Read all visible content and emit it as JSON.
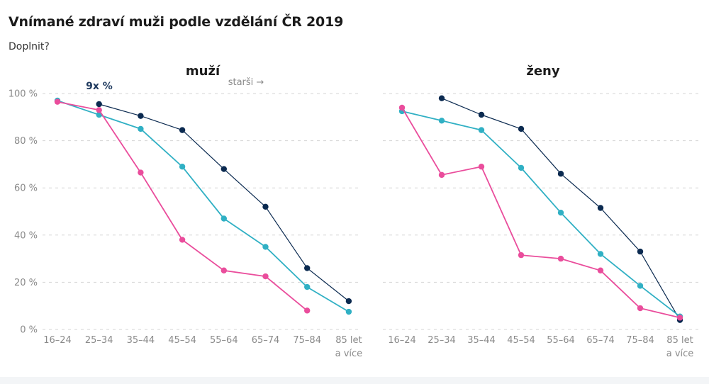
{
  "title": "Vnímané zdraví muži podle vzdělání ČR 2019",
  "subtitle": "Doplnit?",
  "colors": {
    "series_1": "#0b2a50",
    "series_2": "#30b0c4",
    "series_3": "#ea4d9c",
    "grid": "#d4d4d4",
    "tick": "#8a8a8a"
  },
  "chart_data": [
    {
      "type": "line",
      "facet": "left",
      "title": "muží",
      "annotations": [
        {
          "text": "9x %",
          "style": "bold"
        },
        {
          "text": "starši →",
          "style": "normal"
        }
      ],
      "categories": [
        "16–24",
        "25–34",
        "35–44",
        "45–54",
        "55–64",
        "65–74",
        "75–84",
        "85 let\na více"
      ],
      "y_ticks": [
        "0 %",
        "20 %",
        "40 %",
        "60 %",
        "80 %",
        "100 %"
      ],
      "ylim": [
        0,
        100
      ],
      "grid": true,
      "series": [
        {
          "color": "#0b2a50",
          "values": [
            null,
            95.5,
            90.5,
            84.5,
            68,
            52,
            26,
            12
          ]
        },
        {
          "color": "#30b0c4",
          "values": [
            97,
            91,
            85,
            69,
            47,
            35,
            18,
            7.5
          ]
        },
        {
          "color": "#ea4d9c",
          "values": [
            96.5,
            93,
            66.5,
            38,
            25,
            22.5,
            8,
            null
          ]
        }
      ]
    },
    {
      "type": "line",
      "facet": "right",
      "title": "ženy",
      "annotations": [],
      "categories": [
        "16–24",
        "25–34",
        "35–44",
        "45–54",
        "55–64",
        "65–74",
        "75–84",
        "85 let\na více"
      ],
      "y_ticks": [],
      "ylim": [
        0,
        100
      ],
      "grid": true,
      "series": [
        {
          "color": "#0b2a50",
          "values": [
            null,
            98,
            91,
            85,
            66,
            51.5,
            33,
            4
          ]
        },
        {
          "color": "#30b0c4",
          "values": [
            92.5,
            88.5,
            84.5,
            68.5,
            49.5,
            32,
            18.5,
            5.5
          ]
        },
        {
          "color": "#ea4d9c",
          "values": [
            94,
            65.5,
            69,
            31.5,
            30,
            25,
            9,
            5
          ]
        }
      ]
    }
  ]
}
